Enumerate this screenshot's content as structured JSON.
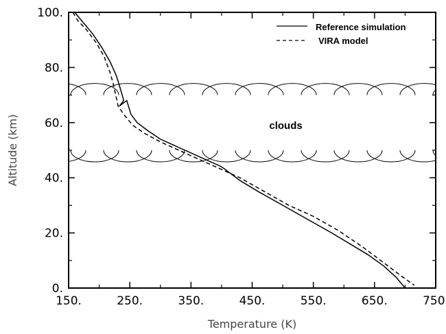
{
  "chart_data": {
    "type": "line",
    "title": "",
    "xlabel": "Temperature (K)",
    "ylabel": "Altitude (km)",
    "xlim": [
      150,
      750
    ],
    "ylim": [
      0,
      100
    ],
    "x_ticks": [
      "150.",
      "250.",
      "350.",
      "450.",
      "550.",
      "650.",
      "750."
    ],
    "y_ticks": [
      "0.",
      "20.",
      "40.",
      "60.",
      "80.",
      "100."
    ],
    "x_tick_values": [
      150,
      250,
      350,
      450,
      550,
      650,
      750
    ],
    "y_tick_values": [
      0,
      20,
      40,
      60,
      80,
      100
    ],
    "legend_position": "top-right",
    "series": [
      {
        "name": "Reference simulation",
        "style": "solid",
        "color": "#000000",
        "points": [
          [
            160,
            100
          ],
          [
            175,
            96
          ],
          [
            190,
            92
          ],
          [
            205,
            87
          ],
          [
            218,
            82
          ],
          [
            228,
            77
          ],
          [
            235,
            72
          ],
          [
            240,
            68
          ],
          [
            233,
            66
          ],
          [
            245,
            68
          ],
          [
            252,
            63
          ],
          [
            262,
            60
          ],
          [
            280,
            57
          ],
          [
            300,
            54
          ],
          [
            330,
            51
          ],
          [
            370,
            47
          ],
          [
            400,
            44
          ],
          [
            430,
            39
          ],
          [
            460,
            35
          ],
          [
            500,
            30
          ],
          [
            540,
            25
          ],
          [
            580,
            20
          ],
          [
            610,
            16
          ],
          [
            640,
            12
          ],
          [
            665,
            8
          ],
          [
            685,
            4
          ],
          [
            700,
            0
          ]
        ]
      },
      {
        "name": "VIRA model",
        "style": "dashed",
        "color": "#000000",
        "points": [
          [
            157,
            100
          ],
          [
            165,
            97
          ],
          [
            178,
            94
          ],
          [
            195,
            89
          ],
          [
            208,
            84
          ],
          [
            218,
            78
          ],
          [
            223,
            74
          ],
          [
            227,
            70
          ],
          [
            231,
            66
          ],
          [
            240,
            63
          ],
          [
            255,
            59
          ],
          [
            275,
            56
          ],
          [
            300,
            53
          ],
          [
            330,
            50
          ],
          [
            360,
            47
          ],
          [
            400,
            43
          ],
          [
            430,
            40
          ],
          [
            470,
            35
          ],
          [
            510,
            30
          ],
          [
            550,
            26
          ],
          [
            590,
            21
          ],
          [
            630,
            15
          ],
          [
            660,
            10
          ],
          [
            690,
            5
          ],
          [
            715,
            1
          ]
        ]
      }
    ],
    "annotations": [
      {
        "text": "clouds",
        "x": 505,
        "y": 59
      }
    ],
    "cloud_layers": [
      {
        "type": "upper-arcs",
        "base_altitude": 70,
        "x_range": [
          150,
          750
        ]
      },
      {
        "type": "lower-arcs",
        "base_altitude": 50,
        "x_range": [
          150,
          750
        ]
      }
    ]
  }
}
